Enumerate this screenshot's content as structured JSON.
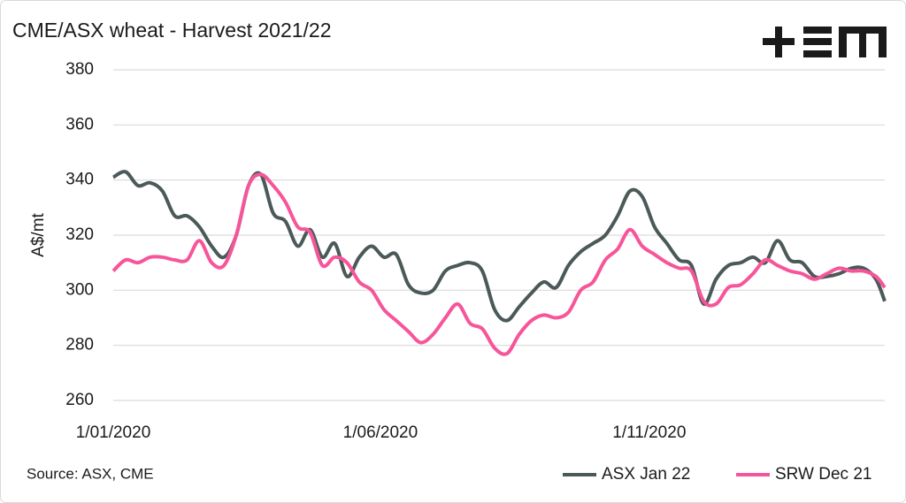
{
  "chart_data": {
    "type": "line",
    "title": "CME/ASX wheat - Harvest 2021/22",
    "y_label": "A$/mt",
    "source": "Source: ASX, CME",
    "x": [
      "2020-01-01",
      "2020-01-08",
      "2020-01-15",
      "2020-01-22",
      "2020-01-29",
      "2020-02-05",
      "2020-02-12",
      "2020-02-19",
      "2020-02-26",
      "2020-03-04",
      "2020-03-11",
      "2020-03-18",
      "2020-03-25",
      "2020-04-01",
      "2020-04-08",
      "2020-04-15",
      "2020-04-22",
      "2020-04-29",
      "2020-05-06",
      "2020-05-13",
      "2020-05-20",
      "2020-05-27",
      "2020-06-03",
      "2020-06-10",
      "2020-06-17",
      "2020-06-24",
      "2020-07-01",
      "2020-07-08",
      "2020-07-15",
      "2020-07-22",
      "2020-07-29",
      "2020-08-05",
      "2020-08-12",
      "2020-08-19",
      "2020-08-26",
      "2020-09-02",
      "2020-09-09",
      "2020-09-16",
      "2020-09-23",
      "2020-09-30",
      "2020-10-07",
      "2020-10-14",
      "2020-10-21",
      "2020-10-28",
      "2020-11-04",
      "2020-11-11",
      "2020-11-18",
      "2020-11-25",
      "2020-12-02",
      "2020-12-09",
      "2020-12-16",
      "2020-12-23",
      "2020-12-30",
      "2021-01-06",
      "2021-01-13",
      "2021-01-20",
      "2021-01-27",
      "2021-02-03",
      "2021-02-10",
      "2021-02-17",
      "2021-02-24",
      "2021-03-03",
      "2021-03-10",
      "2021-03-15"
    ],
    "series": [
      {
        "name": "ASX Jan 22",
        "color": "#4b5959",
        "values": [
          341,
          343,
          338,
          339,
          336,
          327,
          327,
          323,
          316,
          312,
          320,
          338,
          342,
          328,
          325,
          316,
          322,
          312,
          317,
          305,
          312,
          316,
          312,
          313,
          302,
          299,
          300,
          307,
          309,
          310,
          307,
          293,
          289,
          294,
          299,
          303,
          301,
          309,
          314,
          317,
          320,
          327,
          336,
          334,
          323,
          317,
          311,
          309,
          295,
          304,
          309,
          310,
          312,
          310,
          318,
          311,
          310,
          305,
          305,
          306,
          308,
          308,
          304,
          296
        ]
      },
      {
        "name": "SRW Dec 21",
        "color": "#f7559a",
        "values": [
          307,
          311,
          310,
          312,
          312,
          311,
          311,
          318,
          310,
          309,
          320,
          338,
          342,
          338,
          332,
          323,
          321,
          309,
          312,
          310,
          303,
          300,
          293,
          289,
          285,
          281,
          284,
          290,
          295,
          288,
          286,
          279,
          277,
          284,
          289,
          291,
          290,
          292,
          300,
          303,
          311,
          315,
          322,
          316,
          313,
          310,
          308,
          307,
          296,
          295,
          301,
          302,
          306,
          311,
          309,
          307,
          306,
          304,
          306,
          308,
          307,
          307,
          305,
          301
        ]
      }
    ],
    "xlim": [
      "2020-01-01",
      "2021-03-15"
    ],
    "xticks": [
      {
        "value": "2020-01-01",
        "label": "1/01/2020"
      },
      {
        "value": "2020-06-01",
        "label": "1/06/2020"
      },
      {
        "value": "2020-11-01",
        "label": "1/11/2020"
      }
    ],
    "ylim": [
      260,
      380
    ],
    "yticks": [
      260,
      280,
      300,
      320,
      340,
      360,
      380
    ],
    "grid": true,
    "legend": "bottom-right"
  }
}
